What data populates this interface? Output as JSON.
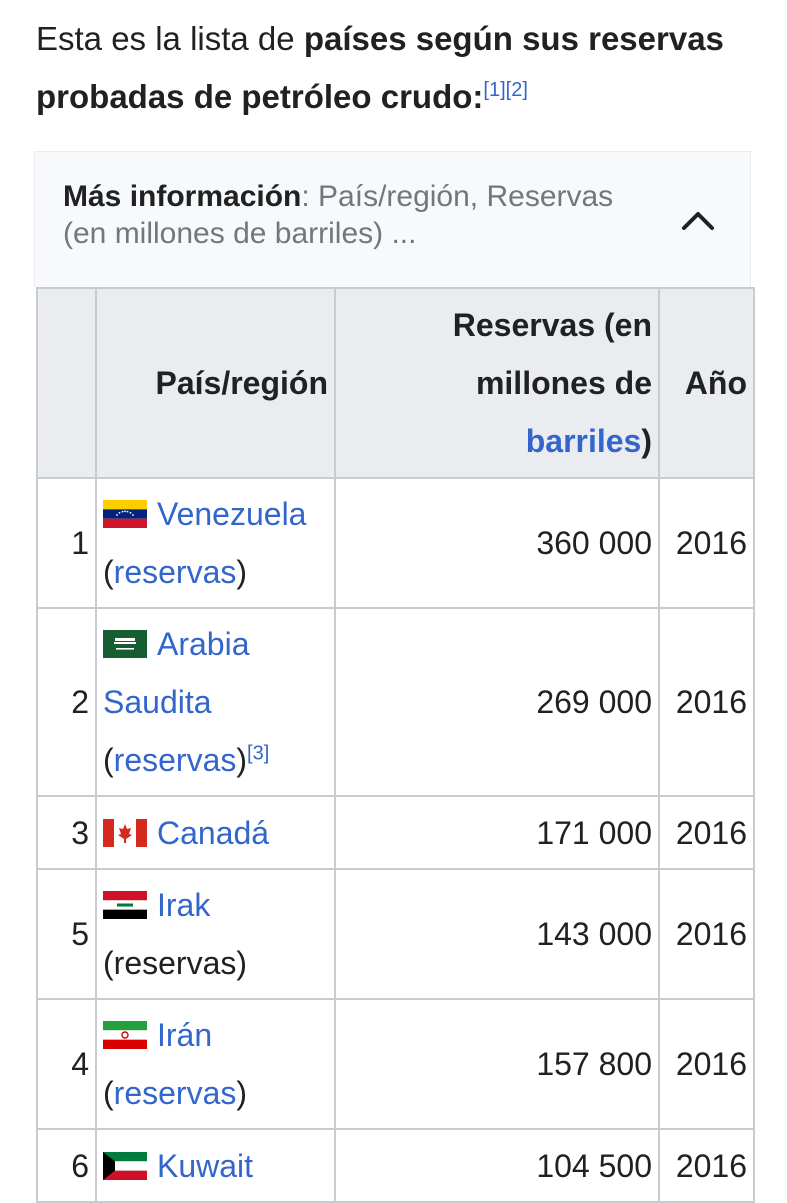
{
  "intro": {
    "prefix": "Esta es la lista de ",
    "bold": "países según sus reservas probadas de petróleo crudo:",
    "ref1": "[1]",
    "ref2": "[2]"
  },
  "collapse": {
    "label": "Más información",
    "separator": ": ",
    "summary": "País/región, Reservas (en millones de barriles) ...",
    "chevron_icon": "chevron-up-icon"
  },
  "table": {
    "headers": {
      "number": "",
      "country": "País/región",
      "reserves_prefix": "Reservas (en millones de ",
      "reserves_link": "barriles",
      "reserves_suffix": ")",
      "year": "Año"
    },
    "rows": [
      {
        "rank": "1",
        "country": "Venezuela",
        "open": "(",
        "reserves_link": "reservas",
        "close": ")",
        "ref": "",
        "value": "360 000",
        "year": "2016",
        "flag": "venezuela-flag"
      },
      {
        "rank": "2",
        "country": "Arabia Saudita",
        "open": "(",
        "reserves_link": "reservas",
        "close": ")",
        "ref": "[3]",
        "value": "269 000",
        "year": "2016",
        "flag": "saudi-arabia-flag"
      },
      {
        "rank": "3",
        "country": "Canadá",
        "value": "171 000",
        "year": "2016",
        "flag": "canada-flag"
      },
      {
        "rank": "5",
        "country": "Irak",
        "reserves_plain": "(reservas)",
        "value": "143 000",
        "year": "2016",
        "flag": "iraq-flag"
      },
      {
        "rank": "4",
        "country": "Irán",
        "open": "(",
        "reserves_link": "reservas",
        "close": ")",
        "value": "157 800",
        "year": "2016",
        "flag": "iran-flag"
      },
      {
        "rank": "6",
        "country": "Kuwait",
        "value": "104 500",
        "year": "2016",
        "flag": "kuwait-flag"
      }
    ]
  },
  "colors": {
    "link": "#3366cc",
    "header_bg": "#eaecf0",
    "border": "#c8ccd1",
    "text": "#202122"
  }
}
